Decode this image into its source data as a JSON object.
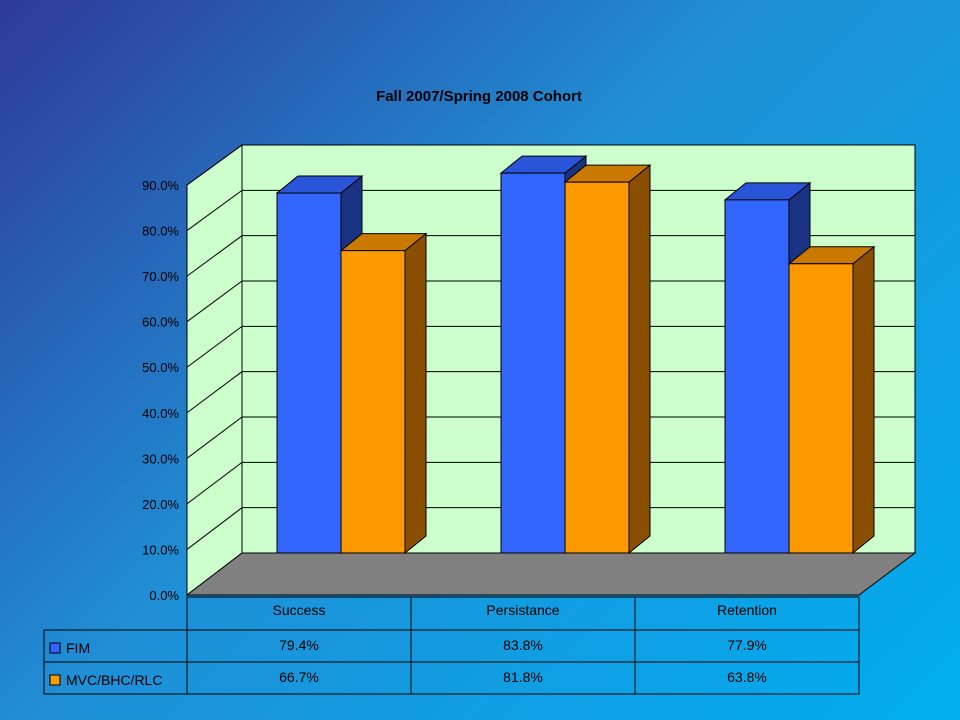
{
  "chart_data": {
    "type": "bar",
    "title": "Fall 2007/Spring 2008 Cohort",
    "categories": [
      "Success",
      "Persistance",
      "Retention"
    ],
    "series": [
      {
        "name": "FIM",
        "values": [
          79.4,
          83.8,
          77.9
        ],
        "labels": [
          "79.4%",
          "83.8%",
          "77.9%"
        ],
        "color": "#3366ff",
        "side_color": "#1a3385"
      },
      {
        "name": "MVC/BHC/RLC",
        "values": [
          66.7,
          81.8,
          63.8
        ],
        "labels": [
          "66.7%",
          "81.8%",
          "63.8%"
        ],
        "color": "#ff9900",
        "side_color": "#8a4f00"
      }
    ],
    "ylim": [
      0,
      90
    ],
    "yticks": [
      "0.0%",
      "10.0%",
      "20.0%",
      "30.0%",
      "40.0%",
      "50.0%",
      "60.0%",
      "70.0%",
      "80.0%",
      "90.0%"
    ],
    "grid": true,
    "plot_background": "#ccffcc",
    "floor_color": "#808080",
    "data_table": true
  }
}
